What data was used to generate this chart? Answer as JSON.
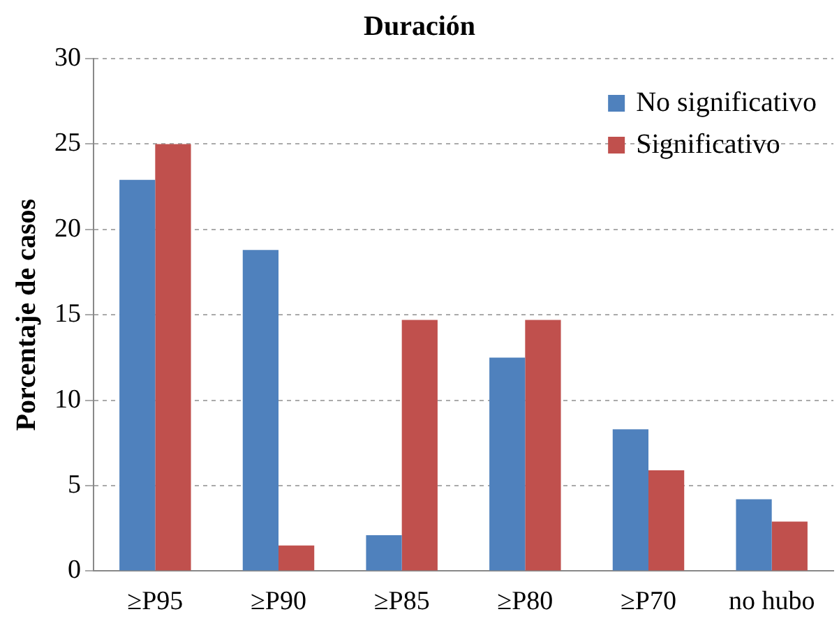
{
  "chart_data": {
    "type": "bar",
    "title": "Duración",
    "ylabel": "Porcentaje de casos",
    "categories": [
      "≥P95",
      "≥P90",
      "≥P85",
      "≥P80",
      "≥P70",
      "no hubo"
    ],
    "series": [
      {
        "name": "No significativo",
        "color": "#4f81bd",
        "values": [
          22.9,
          18.8,
          2.1,
          12.5,
          8.3,
          4.2
        ]
      },
      {
        "name": "Significativo",
        "color": "#c0504d",
        "values": [
          25,
          1.5,
          14.7,
          14.7,
          5.9,
          2.9
        ]
      }
    ],
    "ylim": [
      0,
      30
    ],
    "yticks": [
      0,
      5,
      10,
      15,
      20,
      25,
      30
    ],
    "grid": "y",
    "legend": "top right"
  }
}
